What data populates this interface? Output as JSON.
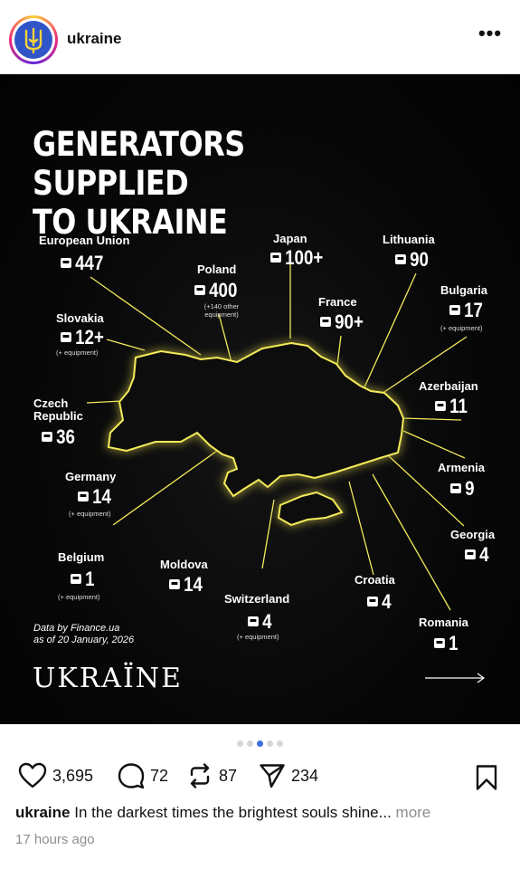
{
  "header": {
    "username": "ukraine",
    "avatar_icon": "trident-icon",
    "more_label": "•••"
  },
  "post": {
    "title_line1": "GENERATORS SUPPLIED",
    "title_line2": "TO UKRAINE",
    "countries": [
      {
        "name": "European Union",
        "value": "447",
        "note": ""
      },
      {
        "name": "Japan",
        "value": "100+",
        "note": ""
      },
      {
        "name": "Lithuania",
        "value": "90",
        "note": ""
      },
      {
        "name": "Poland",
        "value": "400",
        "note": "(+140 other equipment)"
      },
      {
        "name": "Bulgaria",
        "value": "17",
        "note": "(+ equipment)"
      },
      {
        "name": "France",
        "value": "90+",
        "note": ""
      },
      {
        "name": "Slovakia",
        "value": "12+",
        "note": "(+ equipment)"
      },
      {
        "name": "Azerbaijan",
        "value": "11",
        "note": ""
      },
      {
        "name": "Czech Republic",
        "value": "36",
        "note": ""
      },
      {
        "name": "Armenia",
        "value": "9",
        "note": ""
      },
      {
        "name": "Germany",
        "value": "14",
        "note": "(+ equipment)"
      },
      {
        "name": "Georgia",
        "value": "4",
        "note": ""
      },
      {
        "name": "Belgium",
        "value": "1",
        "note": "(+ equipment)"
      },
      {
        "name": "Moldova",
        "value": "14",
        "note": ""
      },
      {
        "name": "Croatia",
        "value": "4",
        "note": ""
      },
      {
        "name": "Switzerland",
        "value": "4",
        "note": "(+ equipment)"
      },
      {
        "name": "Romania",
        "value": "1",
        "note": ""
      }
    ],
    "source_line1": "Data by Finance.ua",
    "source_line2": "as of 20 January, 2026",
    "brand": "UKRAЇNE",
    "accent_color": "#f4ea5a"
  },
  "carousel": {
    "count": 5,
    "active_index": 2
  },
  "actions": {
    "likes": "3,695",
    "comments": "72",
    "reposts": "87",
    "shares": "234"
  },
  "caption": {
    "username": "ukraine",
    "text": "In the darkest times the brightest souls shine...",
    "more_label": "more"
  },
  "timestamp": "17 hours ago"
}
